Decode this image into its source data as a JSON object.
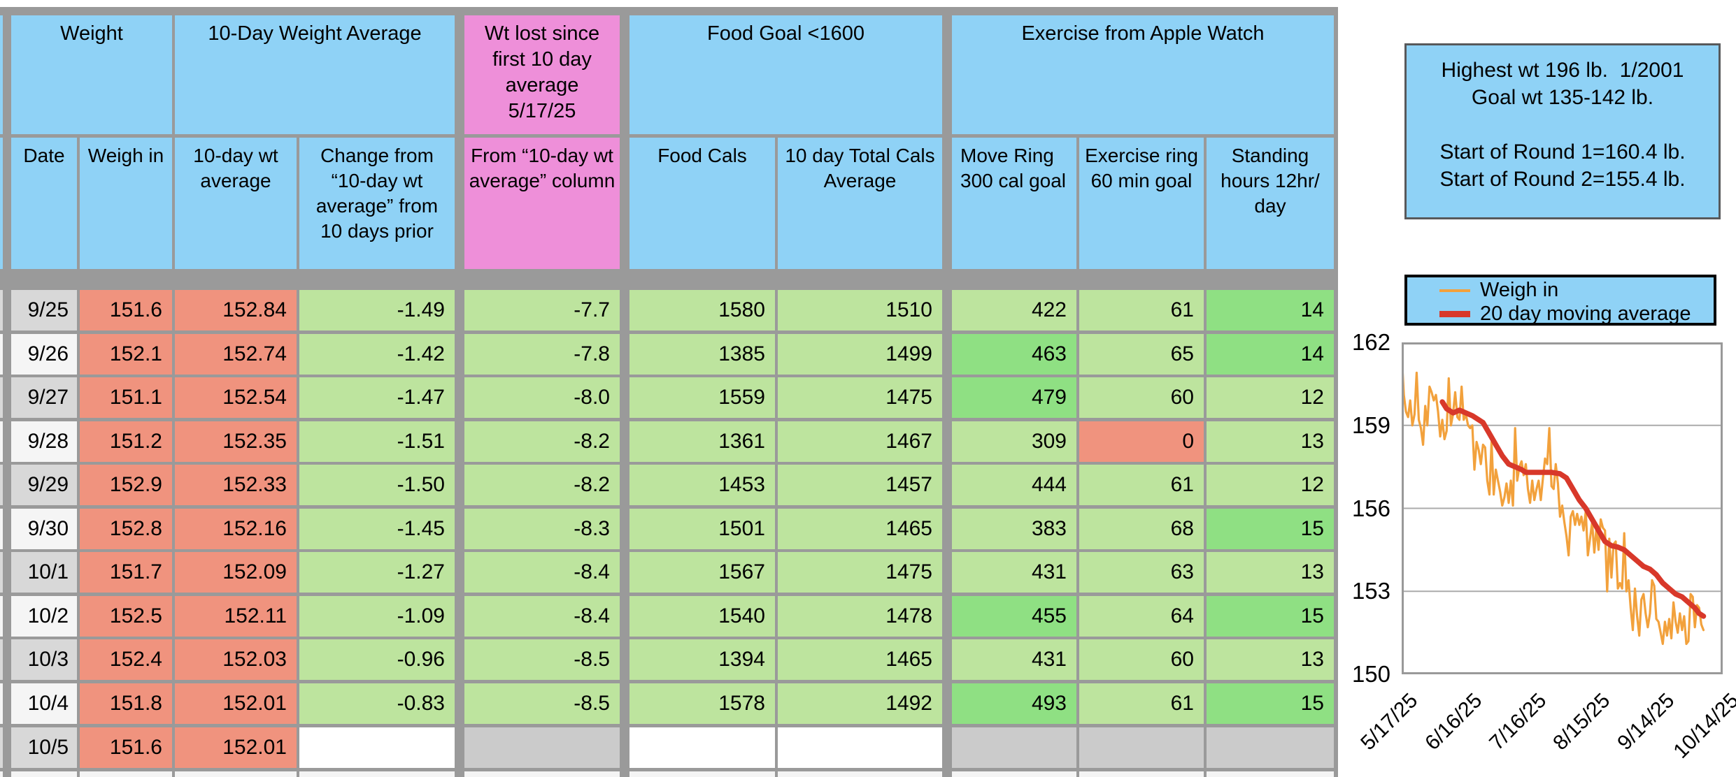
{
  "colors": {
    "header_blue": "#8FD2F6",
    "header_pink": "#EE8FD9",
    "salmon": "#F0937E",
    "light_green": "#BDE49E",
    "bright_green": "#8FE083",
    "empty_gray": "#CBCBCB",
    "date_gray": "#D8D8D8",
    "date_white": "#F5F5F5",
    "border_gray": "#9A9A9A",
    "grid_gray": "#ABABAB",
    "plot_border": "#999999",
    "orange": "#F2A13C",
    "red": "#D8382A"
  },
  "table": {
    "group_headers": [
      {
        "label": "Weight",
        "cols": [
          0,
          1
        ],
        "color": "blue"
      },
      {
        "label": "10-Day Weight Average",
        "cols": [
          2,
          3
        ],
        "color": "blue"
      },
      {
        "label": "Wt lost since first 10 day average 5/17/25",
        "cols": [
          4,
          4
        ],
        "color": "pink"
      },
      {
        "label": "Food Goal <1600",
        "cols": [
          5,
          6
        ],
        "color": "blue"
      },
      {
        "label": "Exercise from Apple Watch",
        "cols": [
          7,
          9
        ],
        "color": "blue"
      }
    ],
    "column_headers": [
      {
        "label": "Date",
        "color": "blue"
      },
      {
        "label": "Weigh in",
        "color": "blue"
      },
      {
        "label": "10-day wt average",
        "color": "blue"
      },
      {
        "label": "Change from “10-day wt average” from 10 days prior",
        "color": "blue"
      },
      {
        "label": "From “10-day wt average” column",
        "color": "pink"
      },
      {
        "label": "Food Cals",
        "color": "blue"
      },
      {
        "label": "10 day Total Cals Average",
        "color": "blue"
      },
      {
        "label": "Move Ring 300 cal goal",
        "color": "blue",
        "align": "left"
      },
      {
        "label": "Exercise ring 60 min goal",
        "color": "blue"
      },
      {
        "label": "Standing hours 12hr/ day",
        "color": "blue"
      }
    ],
    "rows": [
      {
        "cells": [
          "9/25",
          "151.6",
          "152.84",
          "-1.49",
          "-7.7",
          "1580",
          "1510",
          "422",
          "61",
          "14"
        ],
        "special": {
          "9": "bright"
        }
      },
      {
        "cells": [
          "9/26",
          "152.1",
          "152.74",
          "-1.42",
          "-7.8",
          "1385",
          "1499",
          "463",
          "65",
          "14"
        ],
        "special": {
          "7": "bright",
          "9": "bright"
        }
      },
      {
        "cells": [
          "9/27",
          "151.1",
          "152.54",
          "-1.47",
          "-8.0",
          "1559",
          "1475",
          "479",
          "60",
          "12"
        ],
        "special": {
          "7": "bright"
        }
      },
      {
        "cells": [
          "9/28",
          "151.2",
          "152.35",
          "-1.51",
          "-8.2",
          "1361",
          "1467",
          "309",
          "0",
          "13"
        ],
        "special": {
          "8": "red"
        }
      },
      {
        "cells": [
          "9/29",
          "152.9",
          "152.33",
          "-1.50",
          "-8.2",
          "1453",
          "1457",
          "444",
          "61",
          "12"
        ],
        "special": {}
      },
      {
        "cells": [
          "9/30",
          "152.8",
          "152.16",
          "-1.45",
          "-8.3",
          "1501",
          "1465",
          "383",
          "68",
          "15"
        ],
        "special": {
          "9": "bright"
        }
      },
      {
        "cells": [
          "10/1",
          "151.7",
          "152.09",
          "-1.27",
          "-8.4",
          "1567",
          "1475",
          "431",
          "63",
          "13"
        ],
        "special": {}
      },
      {
        "cells": [
          "10/2",
          "152.5",
          "152.11",
          "-1.09",
          "-8.4",
          "1540",
          "1478",
          "455",
          "64",
          "15"
        ],
        "special": {
          "7": "bright",
          "9": "bright"
        }
      },
      {
        "cells": [
          "10/3",
          "152.4",
          "152.03",
          "-0.96",
          "-8.5",
          "1394",
          "1465",
          "431",
          "60",
          "13"
        ],
        "special": {}
      },
      {
        "cells": [
          "10/4",
          "151.8",
          "152.01",
          "-0.83",
          "-8.5",
          "1578",
          "1492",
          "493",
          "61",
          "15"
        ],
        "special": {
          "7": "bright",
          "9": "bright"
        }
      },
      {
        "cells": [
          "10/5",
          "151.6",
          "152.01",
          "",
          "",
          "",
          "",
          "",
          "",
          ""
        ],
        "special": {
          "3": "white",
          "4": "gray",
          "5": "white",
          "6": "white",
          "7": "gray",
          "8": "gray",
          "9": "gray"
        }
      }
    ]
  },
  "info_box": {
    "lines": [
      "Highest wt 196 lb.  1/2001",
      "Goal wt 135-142 lb.",
      "",
      "Start of Round 1=160.4 lb.",
      "Start of Round 2=155.4 lb."
    ]
  },
  "chart_data": {
    "type": "line",
    "title": "",
    "legend_position": "top",
    "grid": true,
    "ylim": [
      150,
      162
    ],
    "yticks": [
      162,
      159,
      156,
      153,
      150
    ],
    "x_axis_days": [
      0,
      150
    ],
    "xticks": [
      {
        "day": 0,
        "label": "5/17/25"
      },
      {
        "day": 30,
        "label": "6/16/25"
      },
      {
        "day": 60,
        "label": "7/16/25"
      },
      {
        "day": 90,
        "label": "8/15/25"
      },
      {
        "day": 120,
        "label": "9/14/25"
      },
      {
        "day": 150,
        "label": "10/14/25"
      }
    ],
    "legend": [
      {
        "name": "Weigh in",
        "color": "#F2A13C"
      },
      {
        "name": "20 day moving average",
        "color": "#D8382A"
      }
    ],
    "series": [
      {
        "name": "Weigh in",
        "color": "#F2A13C",
        "width": 3.2,
        "points": [
          [
            0,
            161.6
          ],
          [
            1,
            160.1
          ],
          [
            2,
            159.5
          ],
          [
            3,
            159.3
          ],
          [
            4,
            159.9
          ],
          [
            5,
            159.0
          ],
          [
            6,
            159.4
          ],
          [
            7,
            160.9
          ],
          [
            8,
            159.2
          ],
          [
            9,
            158.9
          ],
          [
            10,
            158.3
          ],
          [
            11,
            159.7
          ],
          [
            12,
            159.0
          ],
          [
            13,
            160.4
          ],
          [
            14,
            160.2
          ],
          [
            15,
            159.9
          ],
          [
            16,
            160.1
          ],
          [
            17,
            159.5
          ],
          [
            18,
            158.6
          ],
          [
            19,
            159.2
          ],
          [
            20,
            158.5
          ],
          [
            21,
            158.8
          ],
          [
            22,
            160.7
          ],
          [
            23,
            159.0
          ],
          [
            24,
            159.4
          ],
          [
            25,
            160.2
          ],
          [
            26,
            159.3
          ],
          [
            27,
            159.2
          ],
          [
            28,
            160.4
          ],
          [
            29,
            159.2
          ],
          [
            30,
            159.4
          ],
          [
            31,
            159.0
          ],
          [
            32,
            158.9
          ],
          [
            33,
            159.0
          ],
          [
            34,
            157.4
          ],
          [
            35,
            158.4
          ],
          [
            36,
            158.1
          ],
          [
            37,
            157.6
          ],
          [
            38,
            158.3
          ],
          [
            39,
            158.2
          ],
          [
            40,
            157.0
          ],
          [
            41,
            156.5
          ],
          [
            42,
            158.4
          ],
          [
            43,
            156.5
          ],
          [
            44,
            157.4
          ],
          [
            45,
            157.0
          ],
          [
            46,
            156.6
          ],
          [
            47,
            156.1
          ],
          [
            48,
            156.4
          ],
          [
            49,
            156.9
          ],
          [
            50,
            156.2
          ],
          [
            51,
            157.0
          ],
          [
            52,
            156.1
          ],
          [
            53,
            158.9
          ],
          [
            54,
            157.0
          ],
          [
            55,
            157.5
          ],
          [
            56,
            157.7
          ],
          [
            57,
            157.2
          ],
          [
            58,
            157.6
          ],
          [
            59,
            156.7
          ],
          [
            60,
            156.2
          ],
          [
            61,
            157.0
          ],
          [
            62,
            156.3
          ],
          [
            63,
            156.7
          ],
          [
            64,
            157.0
          ],
          [
            65,
            156.3
          ],
          [
            66,
            157.1
          ],
          [
            67,
            157.8
          ],
          [
            68,
            157.6
          ],
          [
            69,
            158.9
          ],
          [
            70,
            156.8
          ],
          [
            71,
            156.7
          ],
          [
            72,
            157.6
          ],
          [
            73,
            156.9
          ],
          [
            74,
            155.7
          ],
          [
            75,
            156.1
          ],
          [
            76,
            155.5
          ],
          [
            77,
            155.0
          ],
          [
            78,
            154.3
          ],
          [
            79,
            155.7
          ],
          [
            80,
            155.9
          ],
          [
            81,
            155.4
          ],
          [
            82,
            155.8
          ],
          [
            83,
            155.4
          ],
          [
            84,
            155.7
          ],
          [
            85,
            155.2
          ],
          [
            86,
            155.9
          ],
          [
            87,
            154.3
          ],
          [
            88,
            154.9
          ],
          [
            89,
            155.5
          ],
          [
            90,
            154.4
          ],
          [
            91,
            155.3
          ],
          [
            92,
            154.5
          ],
          [
            93,
            155.6
          ],
          [
            94,
            155.3
          ],
          [
            95,
            155.2
          ],
          [
            96,
            153.0
          ],
          [
            97,
            154.9
          ],
          [
            98,
            153.5
          ],
          [
            99,
            154.7
          ],
          [
            100,
            154.8
          ],
          [
            101,
            153.1
          ],
          [
            102,
            153.3
          ],
          [
            103,
            153.1
          ],
          [
            104,
            155.1
          ],
          [
            105,
            153.0
          ],
          [
            106,
            153.4
          ],
          [
            107,
            152.4
          ],
          [
            108,
            151.6
          ],
          [
            109,
            153.1
          ],
          [
            110,
            152.1
          ],
          [
            111,
            151.4
          ],
          [
            112,
            152.7
          ],
          [
            113,
            152.9
          ],
          [
            114,
            152.2
          ],
          [
            115,
            151.7
          ],
          [
            116,
            152.2
          ],
          [
            117,
            153.4
          ],
          [
            118,
            153.2
          ],
          [
            119,
            152.0
          ],
          [
            120,
            151.9
          ],
          [
            121,
            151.5
          ],
          [
            122,
            151.1
          ],
          [
            123,
            151.9
          ],
          [
            124,
            151.4
          ],
          [
            125,
            152.0
          ],
          [
            126,
            151.3
          ],
          [
            127,
            152.6
          ],
          [
            128,
            151.9
          ],
          [
            129,
            151.5
          ],
          [
            130,
            152.2
          ],
          [
            131,
            151.6
          ],
          [
            132,
            152.1
          ],
          [
            133,
            151.1
          ],
          [
            134,
            151.2
          ],
          [
            135,
            152.9
          ],
          [
            136,
            152.8
          ],
          [
            137,
            151.7
          ],
          [
            138,
            152.5
          ],
          [
            139,
            152.4
          ],
          [
            140,
            151.8
          ],
          [
            141,
            151.6
          ]
        ]
      },
      {
        "name": "20 day moving average",
        "color": "#D8382A",
        "width": 7.5,
        "points": [
          [
            19,
            159.85
          ],
          [
            21,
            159.6
          ],
          [
            24,
            159.45
          ],
          [
            27,
            159.55
          ],
          [
            30,
            159.45
          ],
          [
            33,
            159.35
          ],
          [
            36,
            159.2
          ],
          [
            38,
            159.1
          ],
          [
            41,
            158.7
          ],
          [
            44,
            158.3
          ],
          [
            47,
            157.9
          ],
          [
            50,
            157.6
          ],
          [
            53,
            157.5
          ],
          [
            56,
            157.4
          ],
          [
            58,
            157.3
          ],
          [
            62,
            157.3
          ],
          [
            66,
            157.3
          ],
          [
            70,
            157.3
          ],
          [
            74,
            157.25
          ],
          [
            77,
            157.1
          ],
          [
            80,
            156.7
          ],
          [
            83,
            156.3
          ],
          [
            86,
            156.0
          ],
          [
            89,
            155.6
          ],
          [
            92,
            155.2
          ],
          [
            95,
            154.8
          ],
          [
            98,
            154.65
          ],
          [
            101,
            154.6
          ],
          [
            104,
            154.5
          ],
          [
            107,
            154.3
          ],
          [
            110,
            154.1
          ],
          [
            113,
            153.9
          ],
          [
            116,
            153.8
          ],
          [
            119,
            153.6
          ],
          [
            122,
            153.3
          ],
          [
            125,
            153.1
          ],
          [
            128,
            152.9
          ],
          [
            131,
            152.8
          ],
          [
            134,
            152.6
          ],
          [
            137,
            152.4
          ],
          [
            139,
            152.2
          ],
          [
            141,
            152.1
          ]
        ]
      }
    ]
  }
}
